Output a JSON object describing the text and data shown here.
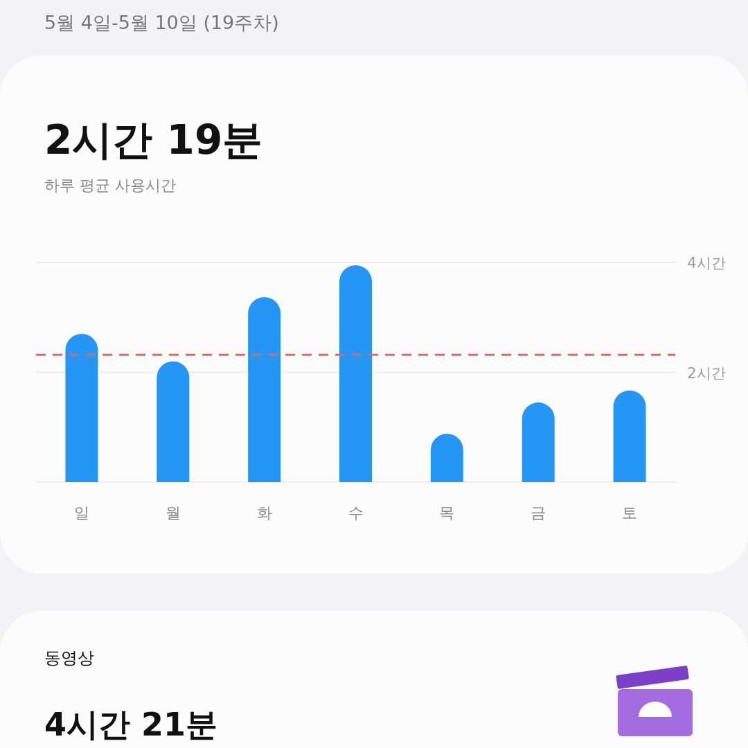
{
  "chart_data": {
    "type": "bar",
    "title": "2시간 19분",
    "subtitle": "하루 평균 사용시간",
    "annotations": [
      "5월 4일-5월 10일 (19주차)",
      "동영상",
      "4시간 21분"
    ],
    "categories": [
      "일",
      "월",
      "화",
      "수",
      "목",
      "금",
      "토"
    ],
    "values": [
      2.7,
      2.2,
      3.37,
      3.95,
      0.88,
      1.45,
      1.67
    ],
    "color": "#2696f5",
    "ylim": [
      0,
      4
    ],
    "yticks": [
      {
        "value": 0,
        "label": null
      },
      {
        "value": 2,
        "label": "2시간"
      },
      {
        "value": 4,
        "label": "4시간"
      }
    ],
    "grid": "y",
    "ref_lines": [
      {
        "axis": "y",
        "value": 2.32,
        "color": "#e0675f",
        "line_style": "dashed"
      }
    ]
  }
}
